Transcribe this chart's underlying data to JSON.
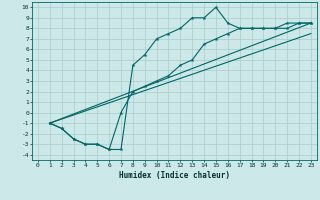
{
  "xlabel": "Humidex (Indice chaleur)",
  "bg_color": "#cce8e8",
  "grid_color": "#aacccc",
  "line_color": "#006666",
  "xlim": [
    -0.5,
    23.5
  ],
  "ylim": [
    -4.5,
    10.5
  ],
  "xticks": [
    0,
    1,
    2,
    3,
    4,
    5,
    6,
    7,
    8,
    9,
    10,
    11,
    12,
    13,
    14,
    15,
    16,
    17,
    18,
    19,
    20,
    21,
    22,
    23
  ],
  "yticks": [
    -4,
    -3,
    -2,
    -1,
    0,
    1,
    2,
    3,
    4,
    5,
    6,
    7,
    8,
    9,
    10
  ],
  "curve1_x": [
    1,
    2,
    3,
    4,
    5,
    6,
    7,
    8,
    9,
    10,
    11,
    12,
    13,
    14,
    15,
    16,
    17,
    18,
    19,
    20,
    21,
    22,
    23
  ],
  "curve1_y": [
    -1,
    -1.5,
    -2.5,
    -3,
    -3,
    -3.5,
    -3.5,
    4.5,
    5.5,
    7,
    7.5,
    8,
    9,
    9,
    10,
    8.5,
    8,
    8,
    8,
    8,
    8.5,
    8.5,
    8.5
  ],
  "curve2_x": [
    1,
    2,
    3,
    4,
    5,
    6,
    7,
    8,
    9,
    10,
    11,
    12,
    13,
    14,
    15,
    16,
    17,
    18,
    19,
    20,
    21,
    22,
    23
  ],
  "curve2_y": [
    -1,
    -1.5,
    -2.5,
    -3,
    -3,
    -3.5,
    0,
    2,
    2.5,
    3,
    3.5,
    4.5,
    5,
    6.5,
    7,
    7.5,
    8,
    8,
    8,
    8,
    8,
    8.5,
    8.5
  ],
  "line1_x": [
    1,
    23
  ],
  "line1_y": [
    -1,
    8.5
  ],
  "line2_x": [
    1,
    23
  ],
  "line2_y": [
    -1,
    7.5
  ]
}
